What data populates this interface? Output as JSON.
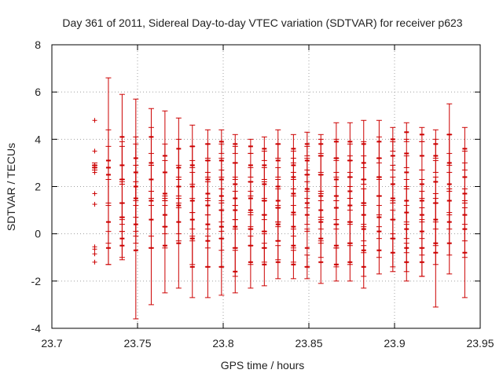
{
  "chart_data": {
    "type": "scatter",
    "title": "Day 361 of 2011, Sidereal Day-to-day VTEC variation (SDTVAR) for receiver p623",
    "xlabel": "GPS time / hours",
    "ylabel": "SDTVAR / TECUs",
    "xlim": [
      23.7,
      23.95
    ],
    "ylim": [
      -4,
      8
    ],
    "xticks": [
      "23.7",
      "23.75",
      "23.8",
      "23.85",
      "23.9",
      "23.95"
    ],
    "yticks": [
      "-4",
      "-2",
      "0",
      "2",
      "4",
      "6",
      "8"
    ],
    "grid": true,
    "series_color": "#cc0000",
    "series": [
      {
        "x": 23.725,
        "points": [
          [
            2.9,
            0.1
          ],
          [
            2.8,
            0.1
          ],
          [
            4.8,
            0
          ],
          [
            3.5,
            0
          ],
          [
            2.6,
            0
          ],
          [
            1.7,
            0
          ],
          [
            1.25,
            0
          ],
          [
            -0.55,
            0
          ],
          [
            -0.65,
            0
          ],
          [
            -0.85,
            0
          ],
          [
            -1.2,
            0
          ]
        ]
      },
      {
        "x": 23.733,
        "points": [
          [
            3.1,
            3.5
          ],
          [
            2.8,
            1.6
          ],
          [
            2.5,
            1.2
          ],
          [
            0.5,
            1.8
          ],
          [
            -0.6,
            0.7
          ]
        ]
      },
      {
        "x": 23.741,
        "points": [
          [
            4.1,
            1.8
          ],
          [
            2.9,
            0.8
          ],
          [
            2.3,
            1.6
          ],
          [
            1.3,
            0.9
          ],
          [
            0.7,
            0.6
          ],
          [
            -0.2,
            0.8
          ],
          [
            -0.5,
            0.6
          ]
        ]
      },
      {
        "x": 23.749,
        "points": [
          [
            3.2,
            2.5
          ],
          [
            2.6,
            1.2
          ],
          [
            2.0,
            2.1
          ],
          [
            1.5,
            1.4
          ],
          [
            0.4,
            0.8
          ],
          [
            -0.7,
            2.9
          ]
        ]
      },
      {
        "x": 23.758,
        "points": [
          [
            4.1,
            1.2
          ],
          [
            3.0,
            1.5
          ],
          [
            2.3,
            1.1
          ],
          [
            1.4,
            1.5
          ],
          [
            0.6,
            1.2
          ],
          [
            -0.6,
            2.4
          ]
        ]
      },
      {
        "x": 23.766,
        "points": [
          [
            3.3,
            1.9
          ],
          [
            2.6,
            1.2
          ],
          [
            1.7,
            1.4
          ],
          [
            0.8,
            0.8
          ],
          [
            0.3,
            0.9
          ],
          [
            -0.5,
            2.0
          ]
        ]
      },
      {
        "x": 23.774,
        "points": [
          [
            3.6,
            1.3
          ],
          [
            2.8,
            1.2
          ],
          [
            2.0,
            0.9
          ],
          [
            1.2,
            1.2
          ],
          [
            0.5,
            0.8
          ],
          [
            -0.4,
            1.9
          ]
        ]
      },
      {
        "x": 23.782,
        "points": [
          [
            3.7,
            0.9
          ],
          [
            2.9,
            0.8
          ],
          [
            2.0,
            1.1
          ],
          [
            1.4,
            1.2
          ],
          [
            0.6,
            0.9
          ],
          [
            -0.2,
            1.1
          ],
          [
            -1.4,
            1.3
          ]
        ]
      },
      {
        "x": 23.791,
        "points": [
          [
            3.8,
            0.6
          ],
          [
            3.1,
            0.7
          ],
          [
            2.3,
            0.8
          ],
          [
            1.7,
            0.9
          ],
          [
            1.2,
            1.0
          ],
          [
            0.4,
            1.0
          ],
          [
            -0.3,
            1.1
          ],
          [
            -1.4,
            1.3
          ]
        ]
      },
      {
        "x": 23.799,
        "points": [
          [
            3.9,
            0.5
          ],
          [
            3.1,
            0.7
          ],
          [
            2.3,
            0.9
          ],
          [
            1.6,
            1.1
          ],
          [
            1.0,
            0.9
          ],
          [
            0.3,
            1.0
          ],
          [
            -0.2,
            1.2
          ],
          [
            -1.4,
            1.2
          ]
        ]
      },
      {
        "x": 23.807,
        "points": [
          [
            3.8,
            0.4
          ],
          [
            3.0,
            0.7
          ],
          [
            2.1,
            0.9
          ],
          [
            1.5,
            0.9
          ],
          [
            1.0,
            0.8
          ],
          [
            0.3,
            0.9
          ],
          [
            -0.6,
            1.2
          ],
          [
            -1.6,
            0.9
          ]
        ]
      },
      {
        "x": 23.816,
        "points": [
          [
            3.7,
            0.3
          ],
          [
            2.9,
            0.5
          ],
          [
            2.2,
            0.6
          ],
          [
            1.5,
            0.7
          ],
          [
            1.0,
            0.8
          ],
          [
            0.2,
            0.7
          ],
          [
            -0.5,
            0.8
          ],
          [
            -1.2,
            1.1
          ]
        ]
      },
      {
        "x": 23.824,
        "points": [
          [
            3.6,
            0.5
          ],
          [
            2.9,
            0.6
          ],
          [
            2.1,
            0.7
          ],
          [
            1.4,
            0.8
          ],
          [
            0.8,
            0.7
          ],
          [
            0.1,
            0.7
          ],
          [
            -0.6,
            0.6
          ],
          [
            -1.3,
            0.9
          ]
        ]
      },
      {
        "x": 23.832,
        "points": [
          [
            3.8,
            0.6
          ],
          [
            3.1,
            0.7
          ],
          [
            2.0,
            0.8
          ],
          [
            1.4,
            0.9
          ],
          [
            1.1,
            0.8
          ],
          [
            0.4,
            0.7
          ],
          [
            -0.3,
            0.8
          ],
          [
            -1.2,
            0.7
          ]
        ]
      },
      {
        "x": 23.841,
        "points": [
          [
            3.6,
            0.6
          ],
          [
            2.9,
            0.6
          ],
          [
            2.4,
            0.8
          ],
          [
            1.7,
            0.9
          ],
          [
            0.9,
            1.0
          ],
          [
            0.3,
            0.9
          ],
          [
            -0.5,
            0.7
          ],
          [
            -1.3,
            0.6
          ]
        ]
      },
      {
        "x": 23.849,
        "points": [
          [
            3.8,
            0.5
          ],
          [
            3.1,
            0.6
          ],
          [
            2.5,
            0.7
          ],
          [
            1.9,
            0.8
          ],
          [
            1.3,
            0.9
          ],
          [
            0.8,
            0.7
          ],
          [
            -0.6,
            0.8
          ],
          [
            -1.4,
            0.5
          ]
        ]
      },
      {
        "x": 23.857,
        "points": [
          [
            3.8,
            0.4
          ],
          [
            3.3,
            0.7
          ],
          [
            2.5,
            0.8
          ],
          [
            1.6,
            0.9
          ],
          [
            1.0,
            0.8
          ],
          [
            0.5,
            0.9
          ],
          [
            -0.2,
            0.8
          ],
          [
            -1.2,
            0.9
          ]
        ]
      },
      {
        "x": 23.866,
        "points": [
          [
            3.9,
            0.8
          ],
          [
            3.2,
            0.8
          ],
          [
            2.3,
            0.9
          ],
          [
            1.6,
            1.0
          ],
          [
            1.1,
            0.9
          ],
          [
            0.4,
            1.0
          ],
          [
            -0.5,
            0.9
          ],
          [
            -1.3,
            0.7
          ]
        ]
      },
      {
        "x": 23.874,
        "points": [
          [
            3.9,
            0.8
          ],
          [
            3.1,
            0.7
          ],
          [
            2.4,
            0.9
          ],
          [
            1.8,
            0.8
          ],
          [
            1.2,
            0.8
          ],
          [
            0.5,
            1.0
          ],
          [
            -0.4,
            0.9
          ],
          [
            -1.2,
            0.8
          ]
        ]
      },
      {
        "x": 23.882,
        "points": [
          [
            3.8,
            1.0
          ],
          [
            3.0,
            0.9
          ],
          [
            2.3,
            1.0
          ],
          [
            1.3,
            1.0
          ],
          [
            0.8,
            1.1
          ],
          [
            0.2,
            1.0
          ],
          [
            -0.7,
            1.1
          ],
          [
            -1.4,
            0.9
          ]
        ]
      },
      {
        "x": 23.891,
        "points": [
          [
            3.9,
            0.9
          ],
          [
            3.2,
            0.9
          ],
          [
            2.4,
            0.8
          ],
          [
            1.6,
            0.8
          ],
          [
            0.7,
            0.9
          ],
          [
            0.1,
            1.1
          ],
          [
            -0.7,
            1.0
          ]
        ]
      },
      {
        "x": 23.899,
        "points": [
          [
            4.0,
            0.5
          ],
          [
            3.3,
            0.6
          ],
          [
            2.1,
            0.8
          ],
          [
            1.5,
            0.9
          ],
          [
            0.6,
            0.8
          ],
          [
            -0.2,
            1.2
          ],
          [
            -0.8,
            0.8
          ]
        ]
      },
      {
        "x": 23.907,
        "points": [
          [
            4.3,
            0.4
          ],
          [
            3.4,
            0.6
          ],
          [
            2.6,
            0.7
          ],
          [
            1.4,
            0.9
          ],
          [
            0.9,
            1.1
          ],
          [
            0.2,
            1.0
          ],
          [
            -0.6,
            1.0
          ],
          [
            -1.2,
            0.8
          ]
        ]
      },
      {
        "x": 23.916,
        "points": [
          [
            4.2,
            0.3
          ],
          [
            3.3,
            0.6
          ],
          [
            2.1,
            0.6
          ],
          [
            1.4,
            0.9
          ],
          [
            0.8,
            1.0
          ],
          [
            0.1,
            1.0
          ],
          [
            -0.6,
            1.2
          ],
          [
            -1.2,
            0.6
          ]
        ]
      },
      {
        "x": 23.924,
        "points": [
          [
            3.8,
            0.6
          ],
          [
            3.3,
            0.7
          ],
          [
            2.2,
            0.9
          ],
          [
            1.3,
            1.1
          ],
          [
            0.6,
            1.1
          ],
          [
            -0.4,
            0.9
          ],
          [
            -0.8,
            2.3
          ]
        ]
      },
      {
        "x": 23.932,
        "points": [
          [
            4.2,
            1.3
          ],
          [
            3.0,
            1.2
          ],
          [
            2.1,
            1.3
          ],
          [
            1.4,
            1.2
          ],
          [
            0.5,
            1.4
          ],
          [
            -0.4,
            1.3
          ]
        ]
      },
      {
        "x": 23.941,
        "points": [
          [
            3.6,
            0.9
          ],
          [
            2.4,
            1.1
          ],
          [
            1.7,
            1.3
          ],
          [
            0.8,
            1.1
          ],
          [
            0.2,
            1.2
          ],
          [
            -0.8,
            1.9
          ]
        ]
      }
    ]
  }
}
